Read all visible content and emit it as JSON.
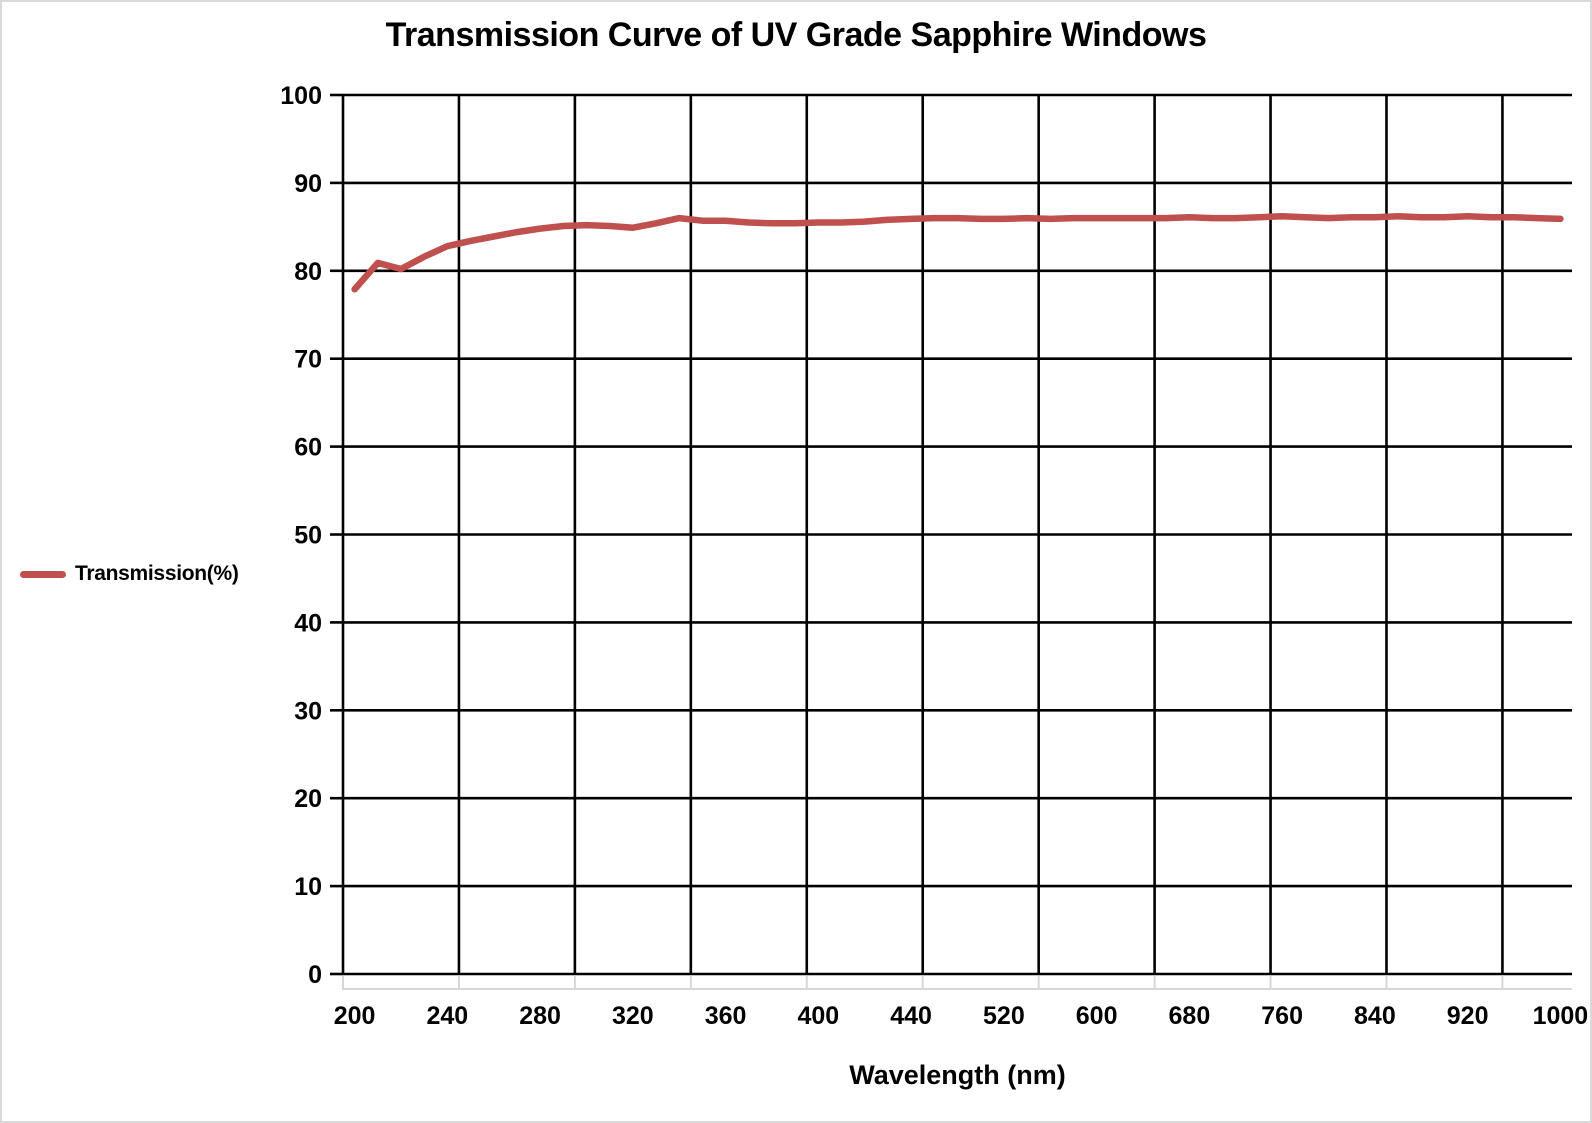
{
  "title": "Transmission Curve of UV Grade Sapphire Windows",
  "legend": {
    "label": "Transmission(%)"
  },
  "x_axis": {
    "title": "Wavelength (nm)",
    "tick_labels": [
      "200",
      "240",
      "280",
      "320",
      "360",
      "400",
      "440",
      "520",
      "600",
      "680",
      "760",
      "840",
      "920",
      "1000"
    ]
  },
  "y_axis": {
    "tick_labels": [
      "100",
      "90",
      "80",
      "70",
      "60",
      "50",
      "40",
      "30",
      "20",
      "10",
      "0"
    ],
    "min": 0,
    "max": 100,
    "step": 10
  },
  "colors": {
    "line": "#c0504d",
    "gridline": "#000000",
    "axis": "#000000",
    "minor_tick": "#d6d6d6",
    "text": "#000000",
    "border": "#d9d9d9"
  },
  "chart_data": {
    "type": "line",
    "title": "Transmission Curve of UV Grade Sapphire Windows",
    "xlabel": "Wavelength (nm)",
    "ylabel": "",
    "ylim": [
      0,
      100
    ],
    "grid": true,
    "legend_position": "left-middle",
    "x_axis_type": "category",
    "x_tick_label_values": [
      200,
      240,
      280,
      320,
      360,
      400,
      440,
      520,
      600,
      680,
      760,
      840,
      920,
      1000
    ],
    "series": [
      {
        "name": "Transmission(%)",
        "color": "#c0504d",
        "x": [
          200,
          210,
          220,
          230,
          240,
          250,
          260,
          270,
          280,
          290,
          300,
          310,
          320,
          330,
          340,
          350,
          360,
          370,
          380,
          390,
          400,
          410,
          420,
          430,
          440,
          460,
          480,
          500,
          520,
          540,
          560,
          580,
          600,
          620,
          640,
          660,
          680,
          700,
          720,
          740,
          760,
          780,
          800,
          820,
          840,
          860,
          880,
          900,
          920,
          940,
          960,
          980,
          1000
        ],
        "values": [
          77.9,
          80.9,
          80.2,
          81.6,
          82.8,
          83.4,
          83.9,
          84.4,
          84.8,
          85.1,
          85.2,
          85.1,
          84.9,
          85.4,
          86.0,
          85.7,
          85.7,
          85.5,
          85.4,
          85.4,
          85.5,
          85.5,
          85.6,
          85.8,
          85.9,
          86.0,
          86.0,
          85.9,
          85.9,
          86.0,
          85.9,
          86.0,
          86.0,
          86.0,
          86.0,
          86.0,
          86.1,
          86.0,
          86.0,
          86.1,
          86.2,
          86.1,
          86.0,
          86.1,
          86.1,
          86.2,
          86.1,
          86.1,
          86.2,
          86.1,
          86.1,
          86.0,
          85.9
        ]
      }
    ]
  }
}
